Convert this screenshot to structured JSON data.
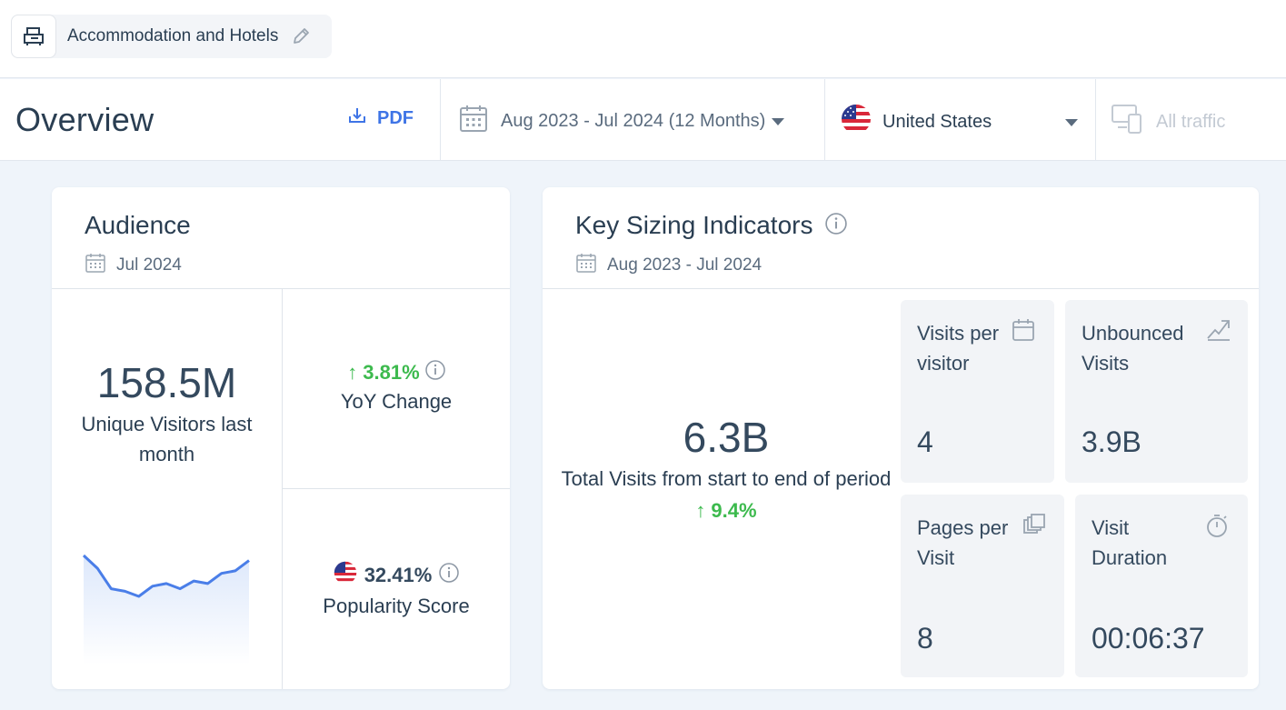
{
  "category": {
    "label": "Accommodation and Hotels",
    "icon": "hotel-icon",
    "edit_icon": "pencil-icon"
  },
  "header": {
    "title": "Overview",
    "pdf_label": "PDF",
    "date_range": "Aug 2023 - Jul 2024 (12 Months)",
    "country": "United States",
    "traffic": "All traffic"
  },
  "audience": {
    "title": "Audience",
    "date": "Jul 2024",
    "unique_visitors": "158.5M",
    "unique_visitors_caption": "Unique Visitors last month",
    "yoy_value": "3.81%",
    "yoy_label": "YoY Change",
    "popularity_value": "32.41%",
    "popularity_label": "Popularity Score",
    "trend": [
      62,
      57,
      49,
      48,
      46,
      50,
      51,
      49,
      52,
      51,
      55,
      56,
      60
    ]
  },
  "ksi": {
    "title": "Key Sizing Indicators",
    "date": "Aug 2023 - Jul 2024",
    "total_visits": "6.3B",
    "total_visits_caption": "Total Visits from start to end of period",
    "total_change": "9.4%",
    "tiles": {
      "visits_per_visitor": {
        "label": "Visits per visitor",
        "value": "4"
      },
      "unbounced": {
        "label": "Unbounced Visits",
        "value": "3.9B"
      },
      "pages_per_visit": {
        "label": "Pages per Visit",
        "value": "8"
      },
      "visit_duration": {
        "label": "Visit Duration",
        "value": "00:06:37"
      }
    }
  },
  "colors": {
    "accent": "#3e74e6",
    "positive": "#3dba4e",
    "line": "#4a7ee8"
  }
}
